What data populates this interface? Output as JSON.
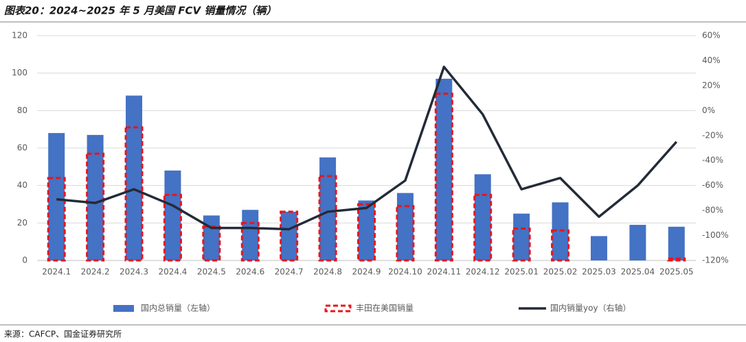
{
  "title": "图表20：2024~2025 年 5 月美国 FCV 销量情况（辆）",
  "source": "来源：CAFCP、国金证券研究所",
  "chart_data": {
    "type": "bar",
    "categories": [
      "2024.1",
      "2024.2",
      "2024.3",
      "2024.4",
      "2024.5",
      "2024.6",
      "2024.7",
      "2024.8",
      "2024.9",
      "2024.10",
      "2024.11",
      "2024.12",
      "2025.01",
      "2025.02",
      "2025.03",
      "2025.04",
      "2025.05"
    ],
    "series": [
      {
        "name": "国内总销量（左轴）",
        "color": "#4472c4",
        "type": "bar",
        "values": [
          68,
          67,
          88,
          48,
          24,
          27,
          26,
          55,
          32,
          36,
          97,
          46,
          25,
          31,
          13,
          19,
          18
        ]
      },
      {
        "name": "丰田在美国销量",
        "color": "#e8141c",
        "type": "dashed-bar",
        "values": [
          44,
          57,
          71,
          35,
          18,
          20,
          26,
          45,
          30,
          29,
          89,
          35,
          17,
          16,
          null,
          null,
          1
        ]
      },
      {
        "name": "国内销量yoy（右轴）",
        "color": "#232b38",
        "type": "line",
        "axis": "y2",
        "values": [
          -71,
          -74,
          -63,
          -76,
          -94,
          -94,
          -95,
          -81,
          -78,
          -56,
          35,
          -3,
          -63,
          -54,
          -85,
          -60,
          -25
        ]
      }
    ],
    "ylim": [
      0,
      120
    ],
    "yticks": [
      0,
      20,
      40,
      60,
      80,
      100,
      120
    ],
    "y2lim": [
      -120,
      60
    ],
    "y2ticks": [
      {
        "value": -120,
        "label": "-120%"
      },
      {
        "value": -100,
        "label": "-100%"
      },
      {
        "value": -80,
        "label": "-80%"
      },
      {
        "value": -60,
        "label": "-60%"
      },
      {
        "value": -40,
        "label": "-40%"
      },
      {
        "value": -20,
        "label": "-20%"
      },
      {
        "value": 0,
        "label": "0%"
      },
      {
        "value": 20,
        "label": "20%"
      },
      {
        "value": 40,
        "label": "40%"
      },
      {
        "value": 60,
        "label": "60%"
      }
    ]
  }
}
